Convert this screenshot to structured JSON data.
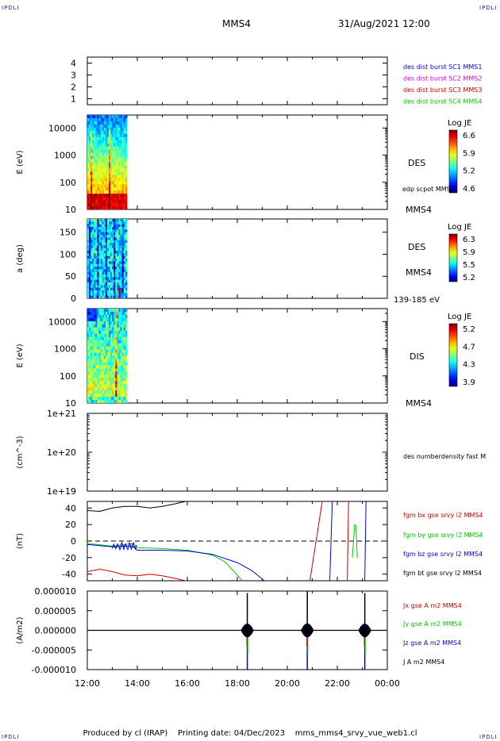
{
  "header": {
    "corner_tl": "IPDLI",
    "corner_tr": "IPDLI",
    "corner_bl": "IPDLI",
    "corner_br": "IPDLI",
    "title": "MMS4",
    "datetime": "31/Aug/2021 12:00"
  },
  "footer": {
    "produced_by": "Produced by cl (IRAP)",
    "printing_date": "Printing date: 04/Dec/2023",
    "filename": "mms_mms4_srvy_vue_web1.cl"
  },
  "colors": {
    "blue": "#0000dd",
    "magenta": "#dd00dd",
    "red": "#cc0000",
    "green": "#00cc00",
    "black": "#000000"
  },
  "chart_data": [
    {
      "type": "line",
      "name": "burst-flags",
      "ylim": [
        0.5,
        4.5
      ],
      "yticks": [
        "1",
        "2",
        "3",
        "4"
      ],
      "legend": [
        {
          "label": "des dist burst SC1 MMS1",
          "color": "#0000dd"
        },
        {
          "label": "des dist burst SC2 MMS2",
          "color": "#dd00dd"
        },
        {
          "label": "des dist burst SC3 MMS3",
          "color": "#cc0000"
        },
        {
          "label": "des dist burst SC4 MMS4",
          "color": "#00cc00"
        }
      ]
    },
    {
      "type": "heatmap",
      "name": "des-energy",
      "ylabel": "E (eV)",
      "yscale": "log",
      "ylim": [
        10,
        30000
      ],
      "yticks": [
        "10",
        "100",
        "1000",
        "10000"
      ],
      "data_time_range": [
        "12:00",
        "13:35"
      ],
      "side_labels": [
        "DES",
        "edp scpot MMS4",
        "MMS4"
      ],
      "colorbar": {
        "title": "Log JE",
        "ticks": [
          "6.6",
          "5.9",
          "5.2",
          "4.6"
        ]
      }
    },
    {
      "type": "heatmap",
      "name": "des-pitch",
      "ylabel": "a (deg)",
      "ylim": [
        0,
        180
      ],
      "yticks": [
        "0",
        "50",
        "100",
        "150"
      ],
      "data_time_range": [
        "12:00",
        "13:35"
      ],
      "side_labels": [
        "DES",
        "MMS4",
        "139-185 eV"
      ],
      "colorbar": {
        "title": "Log JE",
        "ticks": [
          "6.3",
          "5.9",
          "5.5",
          "5.2"
        ]
      }
    },
    {
      "type": "heatmap",
      "name": "dis-energy",
      "ylabel": "E (eV)",
      "yscale": "log",
      "ylim": [
        10,
        30000
      ],
      "yticks": [
        "10",
        "100",
        "1000",
        "10000"
      ],
      "data_time_range": [
        "12:00",
        "13:35"
      ],
      "side_labels": [
        "DIS",
        "MMS4"
      ],
      "colorbar": {
        "title": "Log JE",
        "ticks": [
          "5.2",
          "4.7",
          "4.3",
          "3.9"
        ]
      }
    },
    {
      "type": "line",
      "name": "density",
      "ylabel": "(cm^-3)",
      "yscale": "log",
      "ylim": [
        1e+19,
        1e+21
      ],
      "yticks": [
        "1e+19",
        "1e+20",
        "1e+21"
      ],
      "legend": [
        {
          "label": "des numberdensity fast M",
          "color": "#000000"
        }
      ]
    },
    {
      "type": "line",
      "name": "fgm",
      "ylabel": "(nT)",
      "ylim": [
        -48,
        48
      ],
      "yticks": [
        "-40",
        "-20",
        "0",
        "20",
        "40"
      ],
      "zero_line": true,
      "legend": [
        {
          "label": "fgm bx gse srvy l2 MMS4",
          "color": "#cc0000"
        },
        {
          "label": "fgm by gse srvy l2 MMS4",
          "color": "#00cc00"
        },
        {
          "label": "fgm bz gse srvy l2 MMS4",
          "color": "#0000dd"
        },
        {
          "label": "fgm bt gse srvy l2 MMS4",
          "color": "#000000"
        }
      ],
      "series": [
        {
          "label": "bt",
          "color": "#000000",
          "points": [
            [
              0,
              37
            ],
            [
              0.5,
              36
            ],
            [
              1.0,
              40
            ],
            [
              1.5,
              42
            ],
            [
              2.0,
              42
            ],
            [
              2.5,
              40
            ],
            [
              3.0,
              42
            ],
            [
              3.5,
              45
            ],
            [
              4.0,
              48.5
            ]
          ]
        },
        {
          "label": "bx",
          "color": "#cc0000",
          "points": [
            [
              0,
              -37
            ],
            [
              0.5,
              -34
            ],
            [
              1.0,
              -37
            ],
            [
              1.5,
              -41
            ],
            [
              2.0,
              -42
            ],
            [
              2.5,
              -40
            ],
            [
              3.0,
              -42
            ],
            [
              3.5,
              -45
            ],
            [
              4.0,
              -48.5
            ]
          ]
        },
        {
          "label": "by",
          "color": "#00cc00",
          "points": [
            [
              0,
              -3
            ],
            [
              1.0,
              -6
            ],
            [
              1.8,
              -3
            ],
            [
              2.0,
              -8
            ],
            [
              3.0,
              -9
            ],
            [
              4.0,
              -11
            ],
            [
              5.0,
              -17
            ],
            [
              5.5,
              -25
            ],
            [
              6.0,
              -41
            ],
            [
              6.2,
              -48.5
            ]
          ]
        },
        {
          "label": "bz",
          "color": "#0000dd",
          "points": [
            [
              0,
              -4
            ],
            [
              1.0,
              -7
            ],
            [
              1.8,
              -6
            ],
            [
              2.0,
              -11
            ],
            [
              3.0,
              -11
            ],
            [
              4.0,
              -12
            ],
            [
              5.0,
              -16
            ],
            [
              6.0,
              -26
            ],
            [
              6.6,
              -36
            ],
            [
              7.1,
              -48.5
            ]
          ]
        },
        {
          "label": "bx",
          "color": "#cc0000",
          "points": [
            [
              8.9,
              -48.5
            ],
            [
              9.4,
              48.5
            ]
          ]
        },
        {
          "label": "bz",
          "color": "#0000dd",
          "points": [
            [
              9.7,
              -48.5
            ],
            [
              9.8,
              48.5
            ]
          ]
        },
        {
          "label": "bx",
          "color": "#cc0000",
          "points": [
            [
              10.4,
              -48.5
            ],
            [
              10.45,
              48.5
            ]
          ]
        },
        {
          "label": "by",
          "color": "#00cc00",
          "points": [
            [
              10.6,
              -20
            ],
            [
              10.7,
              20
            ],
            [
              10.75,
              18
            ],
            [
              10.8,
              -20
            ]
          ]
        },
        {
          "label": "bz",
          "color": "#0000dd",
          "points": [
            [
              11.1,
              -48.5
            ],
            [
              11.15,
              48.5
            ]
          ]
        }
      ]
    },
    {
      "type": "line",
      "name": "current-density",
      "ylabel": "(A/m2)",
      "ylim": [
        -1e-05,
        1e-05
      ],
      "yticks": [
        "-0.000010",
        "-0.000005",
        "0.000000",
        "0.000005",
        "0.000010"
      ],
      "legend": [
        {
          "label": "Jx gse A m2 MMS4",
          "color": "#cc0000"
        },
        {
          "label": "Jy gse A m2 MMS4",
          "color": "#00cc00"
        },
        {
          "label": "Jz gse A m2 MMS4",
          "color": "#0000dd"
        },
        {
          "label": "J A m2 MMS4",
          "color": "#000000"
        }
      ],
      "spikes": [
        {
          "t": 6.4,
          "up": 9.5e-06,
          "down": -1e-05
        },
        {
          "t": 8.8,
          "up": 1e-05,
          "down": -1e-05
        },
        {
          "t": 11.1,
          "up": 9.5e-06,
          "down": -1e-05
        }
      ]
    }
  ],
  "time_axis": {
    "range_hours": [
      0,
      12
    ],
    "tick_labels": [
      "12:00",
      "14:00",
      "16:00",
      "18:00",
      "20:00",
      "22:00",
      "00:00"
    ]
  }
}
